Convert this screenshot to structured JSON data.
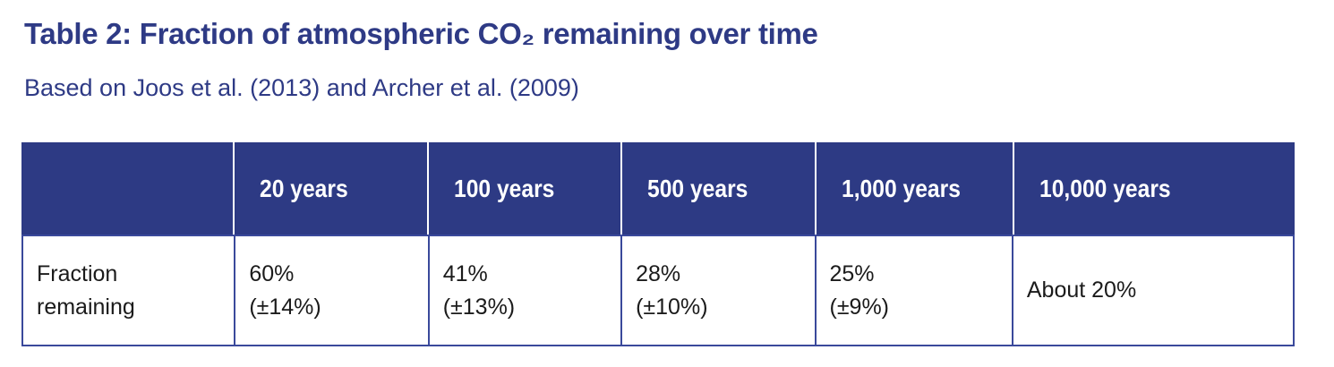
{
  "header": {
    "title": "Table 2: Fraction of atmospheric CO₂ remaining over time",
    "subtitle": "Based on Joos et al. (2013) and Archer et al. (2009)"
  },
  "table": {
    "columns": [
      "",
      "20 years",
      "100 years",
      "500 years",
      "1,000 years",
      "10,000 years"
    ],
    "row_label": "Fraction remaining",
    "cells": [
      {
        "value": "60%",
        "uncertainty": "(±14%)"
      },
      {
        "value": "41%",
        "uncertainty": "(±13%)"
      },
      {
        "value": "28%",
        "uncertainty": "(±10%)"
      },
      {
        "value": "25%",
        "uncertainty": "(±9%)"
      },
      {
        "value": "About 20%",
        "uncertainty": ""
      }
    ]
  },
  "colors": {
    "header_background": "#2D3A84",
    "table_border": "#3A499B",
    "title_text": "#2E3A85",
    "header_text": "#FFFFFF",
    "body_text": "#1B1B1B"
  },
  "chart_data": {
    "type": "table",
    "title": "Table 2: Fraction of atmospheric CO₂ remaining over time",
    "subtitle": "Based on Joos et al. (2013) and Archer et al. (2009)",
    "columns": [
      "",
      "20 years",
      "100 years",
      "500 years",
      "1,000 years",
      "10,000 years"
    ],
    "rows": [
      [
        "Fraction remaining",
        "60% (±14%)",
        "41% (±13%)",
        "28% (±10%)",
        "25% (±9%)",
        "About 20%"
      ]
    ]
  }
}
